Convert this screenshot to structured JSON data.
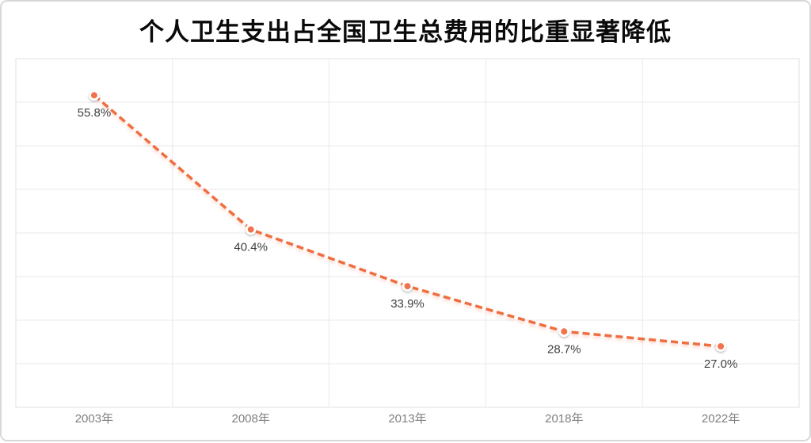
{
  "title": "个人卫生支出占全国卫生总费用的比重显著降低",
  "colors": {
    "line": "#ee6e41",
    "line_shadow": "#ee6e41",
    "marker_fill": "#f2734b",
    "marker_ring": "#ffffff",
    "grid": "#e9e9e9",
    "plot_border": "#e1e1e1",
    "outer_border": "#d8d8d8",
    "data_label": "#3f3f3f",
    "axis_label": "#7f7f7f",
    "title_color": "#0a0a0a",
    "background": "#ffffff"
  },
  "chart_data": {
    "type": "line",
    "title": "个人卫生支出占全国卫生总费用的比重显著降低",
    "categories": [
      "2003年",
      "2008年",
      "2013年",
      "2018年",
      "2022年"
    ],
    "series": [
      {
        "name": "个人卫生支出占全国卫生总费用的比重",
        "values": [
          55.8,
          40.4,
          33.9,
          28.7,
          27.0
        ]
      }
    ],
    "data_labels": [
      "55.8%",
      "40.4%",
      "33.9%",
      "28.7%",
      "27.0%"
    ],
    "xlabel": "",
    "ylabel": "",
    "ylim": [
      20,
      60
    ],
    "y_step": 5,
    "grid": true,
    "y_axis_labels_visible": false,
    "line_style": "dashed",
    "marker": "circle-with-white-ring",
    "legend_position": "none"
  }
}
